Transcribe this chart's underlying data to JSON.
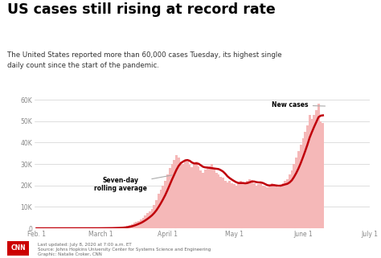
{
  "title": "US cases still rising at record rate",
  "subtitle": "The United States reported more than 60,000 cases Tuesday, its highest single\ndaily count since the start of the pandemic.",
  "footer1": "Last updated: July 8, 2020 at 7:00 a.m. ET",
  "footer2": "Source: Johns Hopkins University Center for Systems Science and Engineering",
  "footer3": "Graphic: Natalie Croker, CNN",
  "cnn_label": "CNN",
  "bar_color": "#f5b8b8",
  "line_color": "#c0000a",
  "bg_color": "#ffffff",
  "yticks": [
    0,
    10000,
    20000,
    30000,
    40000,
    50000,
    60000
  ],
  "ylabels": [
    "0",
    "10K",
    "20K",
    "30K",
    "40K",
    "50K",
    "60K"
  ],
  "ylim": [
    0,
    65000
  ],
  "annotation_rolling": "Seven-day\nrolling average",
  "annotation_new": "New cases",
  "daily_cases": [
    0,
    0,
    0,
    0,
    1,
    1,
    2,
    2,
    3,
    3,
    4,
    4,
    5,
    5,
    5,
    6,
    8,
    10,
    12,
    15,
    15,
    20,
    20,
    25,
    30,
    35,
    40,
    50,
    60,
    70,
    80,
    100,
    120,
    150,
    180,
    220,
    280,
    350,
    450,
    600,
    800,
    1100,
    1500,
    2000,
    2500,
    3000,
    3500,
    4000,
    5000,
    6000,
    7000,
    8000,
    9000,
    11000,
    13000,
    16000,
    18000,
    20000,
    22000,
    25000,
    28000,
    30000,
    32000,
    34000,
    33000,
    31000,
    30000,
    32000,
    31000,
    29500,
    28500,
    30000,
    31000,
    29000,
    27000,
    26000,
    27500,
    28000,
    29000,
    30000,
    28000,
    26000,
    25000,
    24000,
    23500,
    22000,
    21500,
    22000,
    21000,
    20500,
    20000,
    21000,
    22000,
    21500,
    21000,
    22000,
    23000,
    22500,
    21000,
    20000,
    20500,
    21000,
    20000,
    19500,
    19000,
    20000,
    21000,
    20500,
    20000,
    19000,
    20000,
    21000,
    22000,
    23000,
    25000,
    27000,
    30000,
    33000,
    36000,
    39000,
    42000,
    45000,
    48000,
    53000,
    51000,
    53000,
    55000,
    58000,
    50000,
    49000
  ],
  "xtick_positions": [
    0,
    29,
    59,
    89,
    120,
    150
  ],
  "xtick_labels": [
    "Feb. 1",
    "March 1",
    "April 1",
    "May 1",
    "June 1",
    "July 1"
  ]
}
